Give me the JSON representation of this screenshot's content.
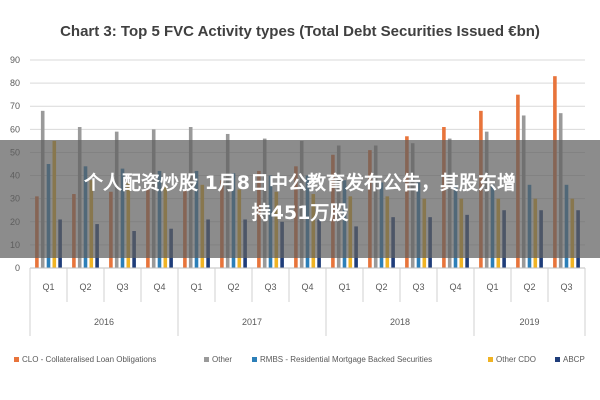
{
  "chart_data": {
    "type": "bar",
    "title": "Chart 3: Top 5 FVC Activity types (Total Debt Securities Issued €bn)",
    "xlabel": "",
    "ylabel": "",
    "ylim": [
      0,
      90
    ],
    "yticks": [
      0,
      10,
      20,
      30,
      40,
      50,
      60,
      70,
      80,
      90
    ],
    "grid": true,
    "legend_position": "bottom",
    "categories": [
      "Q1",
      "Q2",
      "Q3",
      "Q4",
      "Q1",
      "Q2",
      "Q3",
      "Q4",
      "Q1",
      "Q2",
      "Q3",
      "Q4",
      "Q1",
      "Q2",
      "Q3"
    ],
    "years": [
      {
        "label": "2016",
        "count": 4
      },
      {
        "label": "2017",
        "count": 4
      },
      {
        "label": "2018",
        "count": 4
      },
      {
        "label": "2019",
        "count": 3
      }
    ],
    "series": [
      {
        "name": "CLO - Collateralised Loan Obligations",
        "color": "#e8743b",
        "values": [
          31,
          32,
          33,
          34,
          34,
          38,
          42,
          44,
          49,
          51,
          57,
          61,
          68,
          75,
          83
        ]
      },
      {
        "name": "Other",
        "color": "#9a9a9a",
        "values": [
          68,
          61,
          59,
          60,
          61,
          58,
          56,
          55,
          53,
          53,
          54,
          56,
          59,
          66,
          67
        ]
      },
      {
        "name": "RMBS - Residential Mortgage Backed Securities",
        "color": "#2c7fb8",
        "values": [
          45,
          44,
          43,
          42,
          42,
          41,
          40,
          40,
          38,
          37,
          37,
          36,
          36,
          36,
          36
        ]
      },
      {
        "name": "Other CDO",
        "color": "#f0b323",
        "values": [
          55,
          38,
          37,
          36,
          36,
          34,
          33,
          32,
          31,
          31,
          30,
          30,
          30,
          30,
          30
        ]
      },
      {
        "name": "ABCP",
        "color": "#1f3d7a",
        "values": [
          21,
          19,
          16,
          17,
          21,
          21,
          20,
          21,
          18,
          22,
          22,
          23,
          25,
          25,
          25
        ]
      }
    ]
  },
  "overlay": {
    "line1": "个人配资炒股 1月8日中公教育发布公告，其股东增",
    "line2": "持451万股"
  }
}
